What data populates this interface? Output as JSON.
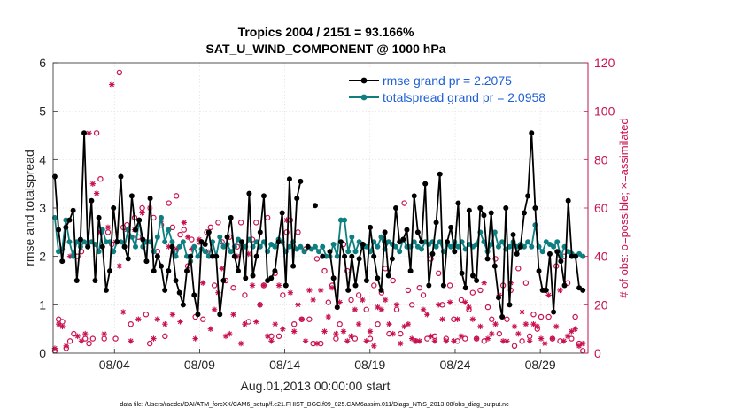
{
  "chart_data": {
    "type": "line",
    "title": "Tropics 2004 / 2151 = 93.166%",
    "subtitle": "SAT_U_WIND_COMPONENT @ 1000 hPa",
    "xlabel": "Aug.01,2013 00:00:00 start",
    "ylabel_left": "rmse and totalspread",
    "ylabel_right": "# of obs: o=possible; ×=assimilated",
    "footnote": "data file: /Users/raeder/DAI/ATM_forcXX/CAM6_setup/f.e21.FHIST_BGC.f09_025.CAM6assim.011/Diags_NTrS_2013-08/obs_diag_output.nc",
    "xlim": [
      0.4,
      31.8
    ],
    "ylim_left": [
      0,
      6
    ],
    "ylim_right": [
      0,
      120
    ],
    "xticks": [
      4,
      9,
      14,
      19,
      24,
      29
    ],
    "xtick_labels": [
      "08/04",
      "08/09",
      "08/14",
      "08/19",
      "08/24",
      "08/29"
    ],
    "yticks_left": [
      "0",
      "1",
      "2",
      "3",
      "4",
      "5",
      "6"
    ],
    "yticks_right": [
      "0",
      "20",
      "40",
      "60",
      "80",
      "100",
      "120"
    ],
    "legend_position": "top-right",
    "colors": {
      "rmse": "#000000",
      "spread": "#0e7f80",
      "obs": "#c8114d",
      "legend_text": "#1f5fd6"
    },
    "series": [
      {
        "name": "rmse grand pr = 2.2075",
        "axis": "left",
        "values": [
          3.65,
          2.55,
          1.9,
          2.6,
          2.75,
          2.95,
          1.5,
          2.35,
          4.55,
          2.2,
          3.15,
          1.5,
          2.8,
          2.2,
          1.3,
          1.7,
          3.0,
          2.3,
          3.65,
          2.2,
          1.95,
          3.25,
          2.55,
          2.75,
          2.35,
          1.9,
          3.2,
          1.7,
          2.0,
          1.8,
          1.3,
          1.7,
          2.2,
          1.5,
          1.25,
          1.0,
          1.7,
          2.0,
          1.2,
          0.8,
          2.3,
          2.25,
          2.5,
          2.0,
          2.0,
          0.8,
          1.5,
          2.4,
          2.8,
          2.0,
          1.7,
          2.3,
          1.55,
          3.3,
          1.6,
          2.0,
          2.5,
          3.25,
          1.5,
          1.55,
          1.7,
          2.3,
          2.9,
          1.4,
          3.6,
          1.8,
          3.2,
          3.55,
          null,
          2.2,
          null,
          3.05,
          null,
          2.0,
          null,
          2.1,
          1.55,
          0.95,
          2.3,
          2.0,
          1.3,
          2.0,
          1.4,
          1.95,
          2.25,
          1.5,
          2.6,
          2.0,
          1.55,
          1.3,
          2.5,
          1.6,
          1.95,
          3.0,
          2.3,
          2.35,
          2.55,
          1.7,
          3.25,
          2.5,
          2.3,
          3.5,
          1.4,
          2.05,
          2.7,
          3.7,
          1.4,
          2.3,
          2.6,
          2.1,
          3.1,
          1.65,
          1.35,
          2.95,
          1.6,
          1.5,
          3.0,
          2.85,
          1.95,
          2.9,
          1.8,
          1.15,
          0.75,
          3.0,
          1.0,
          2.45,
          2.05,
          2.2,
          2.9,
          3.25,
          4.55,
          3.0,
          1.7,
          1.3,
          1.3,
          2.05,
          0.85,
          2.1,
          1.9,
          1.4,
          3.15,
          2.0,
          2.0,
          1.35,
          1.3
        ]
      },
      {
        "name": "totalspread grand pr = 2.0958",
        "axis": "left",
        "values": [
          2.8,
          2.1,
          2.15,
          2.75,
          2.3,
          2.0,
          2.3,
          2.2,
          2.3,
          2.2,
          2.3,
          2.25,
          2.1,
          2.55,
          2.3,
          2.3,
          2.1,
          2.3,
          2.3,
          2.2,
          2.55,
          2.4,
          2.2,
          2.75,
          2.2,
          2.3,
          2.3,
          2.1,
          2.4,
          2.8,
          2.3,
          2.55,
          2.3,
          2.0,
          2.2,
          2.3,
          2.0,
          1.9,
          2.2,
          2.0,
          2.15,
          2.1,
          2.0,
          2.3,
          2.0,
          2.4,
          2.2,
          2.25,
          2.1,
          2.2,
          2.35,
          2.25,
          2.2,
          2.35,
          2.2,
          2.3,
          2.2,
          2.3,
          2.1,
          2.25,
          2.2,
          2.35,
          2.3,
          2.1,
          2.2,
          2.3,
          2.15,
          2.2,
          2.1,
          2.2,
          2.15,
          2.2,
          2.1,
          2.2,
          2.0,
          2.0,
          2.25,
          2.0,
          2.75,
          2.75,
          2.1,
          2.4,
          2.1,
          2.3,
          2.2,
          2.2,
          2.1,
          2.3,
          2.2,
          2.4,
          2.15,
          2.3,
          2.25,
          2.2,
          2.1,
          2.35,
          2.2,
          2.2,
          2.3,
          2.2,
          2.15,
          2.3,
          2.25,
          2.3,
          2.2,
          2.3,
          2.1,
          2.25,
          2.2,
          2.3,
          2.2,
          2.3,
          2.15,
          2.25,
          2.2,
          2.25,
          2.5,
          2.3,
          2.1,
          2.25,
          2.5,
          2.2,
          2.3,
          2.15,
          2.2,
          2.3,
          2.2,
          2.25,
          2.2,
          2.3,
          2.2,
          2.65,
          2.2,
          2.1,
          2.3,
          2.25,
          2.2,
          2.3,
          2.0,
          2.2,
          2.1,
          2.05,
          2.0,
          2.05,
          2.0
        ]
      },
      {
        "name": "possible",
        "axis": "right",
        "marker": "circle",
        "values": [
          1,
          14,
          13,
          2,
          5,
          8,
          40,
          42,
          6,
          4,
          6,
          91,
          72,
          6,
          50,
          45,
          6,
          116,
          52,
          53,
          12,
          56,
          48,
          60,
          16,
          4,
          56,
          42,
          53,
          7,
          62,
          52,
          65,
          49,
          51,
          36,
          47,
          15,
          46,
          14,
          50,
          52,
          28,
          54,
          46,
          30,
          48,
          27,
          44,
          54,
          24,
          13,
          47,
          54,
          20,
          28,
          56,
          7,
          33,
          7,
          24,
          50,
          55,
          12,
          50,
          14,
          43,
          14,
          4,
          39,
          4,
          34,
          21,
          28,
          6,
          12,
          45,
          34,
          22,
          6,
          24,
          45,
          18,
          6,
          28,
          12,
          25,
          35,
          8,
          30,
          18,
          8,
          62,
          26,
          20,
          5,
          27,
          24,
          6,
          39,
          7,
          33,
          20,
          6,
          28,
          14,
          5,
          22,
          6,
          18,
          25,
          6,
          26,
          5,
          19,
          14,
          39,
          8,
          28,
          14,
          26,
          3,
          35,
          5,
          29,
          7,
          16,
          10,
          15,
          26,
          15,
          6,
          36,
          5,
          40,
          29,
          6,
          15,
          4,
          1
        ]
      },
      {
        "name": "assimilated",
        "axis": "right",
        "marker": "asterisk",
        "values": [
          2,
          12,
          11,
          3,
          40,
          41,
          7,
          5,
          8,
          91,
          70,
          66,
          50,
          8,
          52,
          111,
          46,
          36,
          17,
          51,
          5,
          51,
          14,
          58,
          46,
          60,
          6,
          14,
          55,
          12,
          44,
          16,
          43,
          13,
          54,
          48,
          43,
          6,
          47,
          29,
          42,
          10,
          18,
          25,
          35,
          7,
          8,
          16,
          40,
          4,
          12,
          41,
          28,
          13,
          20,
          28,
          7,
          5,
          12,
          28,
          10,
          55,
          25,
          9,
          20,
          14,
          5,
          26,
          22,
          4,
          26,
          9,
          15,
          27,
          8,
          21,
          9,
          5,
          7,
          18,
          12,
          22,
          5,
          9,
          3,
          19,
          18,
          22,
          12,
          8,
          20,
          4,
          11,
          12,
          6,
          5,
          5,
          18,
          16,
          7,
          5,
          20,
          14,
          5,
          21,
          5,
          14,
          7,
          21,
          19,
          14,
          6,
          11,
          29,
          6,
          8,
          12,
          24,
          5,
          5,
          29,
          11,
          8,
          17,
          12,
          5,
          12,
          11,
          6,
          4,
          24,
          6,
          11,
          26,
          5,
          7,
          9,
          10,
          3,
          4
        ]
      }
    ]
  }
}
